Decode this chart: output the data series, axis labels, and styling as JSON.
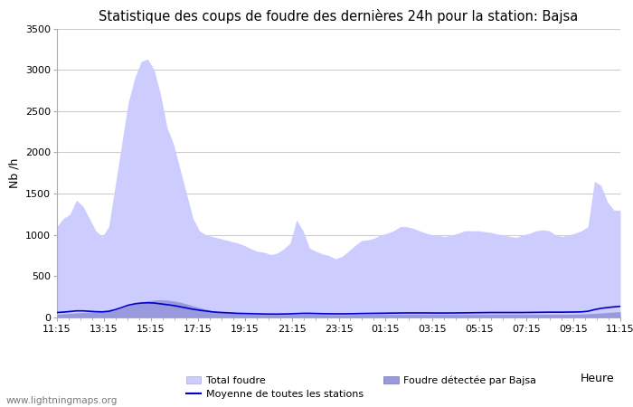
{
  "title": "Statistique des coups de foudre des dernières 24h pour la station: Bajsa",
  "ylabel": "Nb /h",
  "xlabel": "Heure",
  "watermark": "www.lightningmaps.org",
  "ylim": [
    0,
    3500
  ],
  "yticks": [
    0,
    500,
    1000,
    1500,
    2000,
    2500,
    3000,
    3500
  ],
  "x_labels": [
    "11:15",
    "13:15",
    "15:15",
    "17:15",
    "19:15",
    "21:15",
    "23:15",
    "01:15",
    "03:15",
    "05:15",
    "07:15",
    "09:15",
    "11:15"
  ],
  "total_foudre_color": "#ccccff",
  "bajsa_color": "#9999dd",
  "moyenne_color": "#0000cc",
  "background_color": "#ffffff",
  "grid_color": "#cccccc",
  "title_fontsize": 10.5,
  "total_foudre": [
    1100,
    1200,
    1250,
    1420,
    1350,
    1200,
    1050,
    980,
    1100,
    1600,
    2100,
    2600,
    2900,
    3100,
    3130,
    3000,
    2700,
    2300,
    2100,
    1800,
    1500,
    1200,
    1050,
    1000,
    980,
    960,
    940,
    920,
    900,
    870,
    830,
    800,
    790,
    760,
    780,
    830,
    900,
    1180,
    1050,
    840,
    800,
    770,
    750,
    710,
    740,
    800,
    870,
    930,
    940,
    960,
    1000,
    1020,
    1050,
    1100,
    1100,
    1080,
    1050,
    1020,
    1000,
    990,
    980,
    1000,
    1020,
    1050,
    1050,
    1050,
    1040,
    1030,
    1010,
    1000,
    980,
    970,
    1000,
    1020,
    1050,
    1060,
    1050,
    1000,
    980,
    1000,
    1020,
    1050,
    1100,
    1650,
    1600,
    1400,
    1300,
    1300
  ],
  "bajsa_detected": [
    40,
    45,
    50,
    55,
    60,
    65,
    70,
    75,
    80,
    90,
    110,
    140,
    165,
    185,
    200,
    210,
    215,
    210,
    200,
    185,
    165,
    140,
    120,
    100,
    80,
    70,
    60,
    55,
    50,
    45,
    40,
    38,
    36,
    35,
    35,
    35,
    36,
    38,
    40,
    40,
    38,
    36,
    35,
    34,
    34,
    35,
    36,
    37,
    38,
    39,
    40,
    40,
    40,
    40,
    40,
    40,
    40,
    40,
    40,
    40,
    40,
    40,
    40,
    40,
    40,
    40,
    40,
    40,
    40,
    40,
    40,
    40,
    40,
    40,
    40,
    40,
    40,
    40,
    40,
    40,
    40,
    42,
    45,
    50,
    55,
    60,
    65,
    70
  ],
  "moyenne": [
    60,
    65,
    72,
    80,
    80,
    75,
    70,
    68,
    75,
    95,
    120,
    148,
    165,
    175,
    178,
    175,
    165,
    155,
    145,
    130,
    115,
    100,
    88,
    78,
    68,
    62,
    58,
    54,
    50,
    48,
    46,
    44,
    42,
    41,
    41,
    42,
    44,
    47,
    50,
    50,
    48,
    46,
    45,
    44,
    44,
    45,
    46,
    48,
    49,
    50,
    51,
    52,
    53,
    54,
    55,
    55,
    55,
    55,
    54,
    54,
    54,
    54,
    55,
    56,
    57,
    58,
    59,
    60,
    60,
    60,
    60,
    60,
    60,
    61,
    62,
    63,
    64,
    64,
    64,
    65,
    66,
    68,
    75,
    95,
    110,
    120,
    128,
    135
  ]
}
